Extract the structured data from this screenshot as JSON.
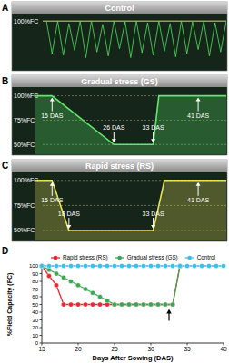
{
  "chart_data": [
    {
      "type": "line",
      "panel_label": "A",
      "title": "Control",
      "xlim": [
        8,
        46
      ],
      "ylim": [
        40,
        108
      ],
      "yticks": [
        {
          "value": 100,
          "label": "100%FC"
        }
      ],
      "tick_labels": "y",
      "grid": true,
      "series": [
        {
          "color": "#4fe35c",
          "type": "line",
          "x": [
            14,
            15,
            16,
            17,
            18,
            19,
            20,
            21,
            22,
            23,
            24,
            25,
            26,
            27,
            28,
            29,
            30,
            31,
            32,
            33,
            34,
            35,
            36,
            37,
            38,
            39,
            40,
            41,
            42,
            43,
            44,
            45,
            46
          ],
          "values": [
            100,
            60,
            100,
            58,
            97,
            64,
            100,
            55,
            100,
            62,
            96,
            57,
            100,
            66,
            99,
            55,
            100,
            61,
            98,
            58,
            100,
            63,
            97,
            56,
            100,
            60,
            99,
            65,
            100,
            57,
            98,
            62,
            100
          ]
        }
      ]
    },
    {
      "type": "line",
      "panel_label": "B",
      "title": "Gradual stress (GS)",
      "xlim": [
        8,
        46
      ],
      "ylim": [
        40,
        108
      ],
      "yticks": [
        {
          "value": 100,
          "label": "100%FC"
        },
        {
          "value": 75,
          "label": "75%FC"
        },
        {
          "value": 50,
          "label": "50%FC"
        }
      ],
      "tick_labels": "y",
      "grid": true,
      "series": [
        {
          "color": "#5fe86a",
          "type": "area",
          "x": [
            12,
            15,
            26,
            33,
            34,
            46
          ],
          "values": [
            100,
            100,
            50,
            50,
            100,
            100
          ]
        }
      ],
      "annotations": [
        {
          "text": "15 DAS",
          "x": 15,
          "y": 100
        },
        {
          "text": "26 DAS",
          "x": 26,
          "y": 50
        },
        {
          "text": "33 DAS",
          "x": 33,
          "y": 50
        },
        {
          "text": "41 DAS",
          "x": 41,
          "y": 100
        }
      ]
    },
    {
      "type": "line",
      "panel_label": "C",
      "title": "Rapid stress (RS)",
      "xlim": [
        8,
        46
      ],
      "ylim": [
        40,
        108
      ],
      "yticks": [
        {
          "value": 100,
          "label": "100%FC"
        },
        {
          "value": 75,
          "label": "75%FC"
        },
        {
          "value": 50,
          "label": "50%FC"
        }
      ],
      "tick_labels": "y",
      "grid": true,
      "series": [
        {
          "color": "#e8e25a",
          "type": "area",
          "x": [
            12,
            15,
            18,
            33,
            35,
            46
          ],
          "values": [
            100,
            100,
            50,
            50,
            100,
            100
          ]
        }
      ],
      "annotations": [
        {
          "text": "15 DAS",
          "x": 15,
          "y": 100
        },
        {
          "text": "18 DAS",
          "x": 18,
          "y": 50
        },
        {
          "text": "33 DAS",
          "x": 33,
          "y": 50
        },
        {
          "text": "41 DAS",
          "x": 41,
          "y": 100
        }
      ]
    },
    {
      "type": "line",
      "panel_label": "D",
      "x_label": "Days After Sowing (DAS)",
      "y_label": "%Field Capacity (FC)",
      "xlim": [
        15,
        40
      ],
      "ylim": [
        0,
        100
      ],
      "xticks": [
        15,
        20,
        25,
        30,
        35,
        40
      ],
      "yticks": [
        0,
        10,
        20,
        30,
        40,
        50,
        60,
        70,
        80,
        90,
        100
      ],
      "grid": false,
      "legend": "top",
      "series": [
        {
          "name": "Rapid stress (RS)",
          "color": "#e8262c",
          "marker": "circle",
          "x": [
            15,
            16,
            17,
            18,
            19,
            20,
            21,
            22,
            23,
            24,
            25,
            26,
            27,
            28,
            29,
            30,
            31,
            32,
            33,
            34
          ],
          "values": [
            100,
            87,
            75,
            50,
            50,
            50,
            50,
            50,
            50,
            50,
            50,
            50,
            50,
            50,
            50,
            50,
            50,
            50,
            50,
            100
          ]
        },
        {
          "name": "Gradual stress (GS)",
          "color": "#3aa650",
          "marker": "circle",
          "x": [
            15,
            16,
            17,
            18,
            19,
            20,
            21,
            22,
            23,
            24,
            25,
            26,
            27,
            28,
            29,
            30,
            31,
            32,
            33,
            34
          ],
          "values": [
            100,
            95,
            90,
            85,
            80,
            75,
            70,
            65,
            60,
            55,
            50,
            50,
            50,
            50,
            50,
            50,
            50,
            50,
            50,
            100
          ]
        },
        {
          "name": "Control",
          "color": "#3cbde8",
          "marker": "circle",
          "x": [
            15,
            16,
            17,
            18,
            19,
            20,
            21,
            22,
            23,
            24,
            25,
            26,
            27,
            28,
            29,
            30,
            31,
            32,
            33,
            34,
            35,
            36,
            37,
            38,
            39,
            40
          ],
          "values": [
            100,
            100,
            100,
            100,
            100,
            100,
            100,
            100,
            100,
            100,
            100,
            100,
            100,
            100,
            100,
            100,
            100,
            100,
            100,
            100,
            100,
            100,
            100,
            100,
            100,
            100
          ]
        }
      ],
      "annotations": [
        {
          "x": 32.5,
          "y": 44
        }
      ]
    }
  ]
}
